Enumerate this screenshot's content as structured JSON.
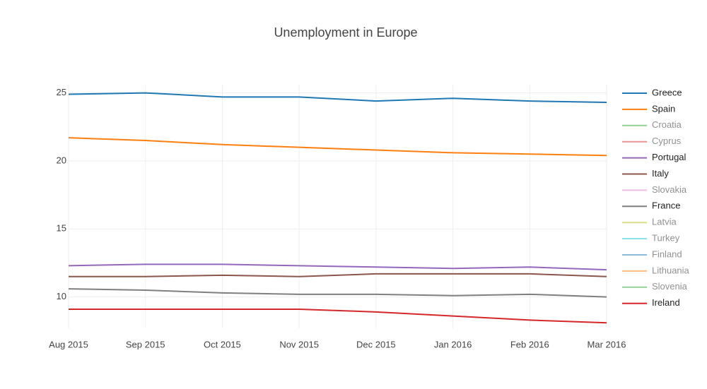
{
  "chart_data": {
    "type": "line",
    "title": "Unemployment in Europe",
    "categories": [
      "Aug 2015",
      "Sep 2015",
      "Oct 2015",
      "Nov 2015",
      "Dec 2015",
      "Jan 2016",
      "Feb 2016",
      "Mar 2016"
    ],
    "ylim": [
      7.7,
      25.6
    ],
    "yticks": [
      10,
      15,
      20,
      25
    ],
    "grid": true,
    "legend": "right",
    "series": [
      {
        "name": "Greece",
        "color": "#1f77b4",
        "values": [
          24.9,
          25.0,
          24.7,
          24.7,
          24.4,
          24.6,
          24.4,
          24.3
        ]
      },
      {
        "name": "Spain",
        "color": "#ff7f0e",
        "values": [
          21.7,
          21.5,
          21.2,
          21.0,
          20.8,
          20.6,
          20.5,
          20.4
        ]
      },
      {
        "name": "Croatia",
        "color": "#2ca02c",
        "visible": false
      },
      {
        "name": "Cyprus",
        "color": "#d62728",
        "visible": false
      },
      {
        "name": "Portugal",
        "color": "#9467bd",
        "values": [
          12.3,
          12.4,
          12.4,
          12.3,
          12.2,
          12.1,
          12.2,
          12.0
        ]
      },
      {
        "name": "Italy",
        "color": "#8c564b",
        "values": [
          11.5,
          11.5,
          11.6,
          11.5,
          11.7,
          11.7,
          11.7,
          11.5
        ]
      },
      {
        "name": "Slovakia",
        "color": "#e377c2",
        "visible": false
      },
      {
        "name": "France",
        "color": "#7f7f7f",
        "values": [
          10.6,
          10.5,
          10.3,
          10.2,
          10.2,
          10.1,
          10.2,
          10.0
        ]
      },
      {
        "name": "Latvia",
        "color": "#bcbd22",
        "visible": false
      },
      {
        "name": "Turkey",
        "color": "#17becf",
        "visible": false
      },
      {
        "name": "Finland",
        "color": "#1f77b4",
        "visible": false
      },
      {
        "name": "Lithuania",
        "color": "#ff7f0e",
        "visible": false
      },
      {
        "name": "Slovenia",
        "color": "#2ca02c",
        "visible": false
      },
      {
        "name": "Ireland",
        "color": "#d62728",
        "values": [
          9.1,
          9.1,
          9.1,
          9.1,
          8.9,
          8.6,
          8.3,
          8.1
        ]
      }
    ]
  }
}
